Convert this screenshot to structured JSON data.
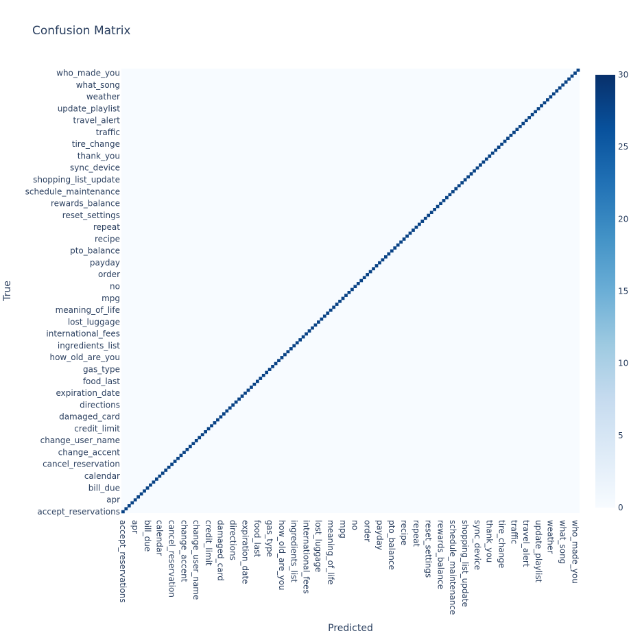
{
  "chart_data": {
    "type": "heatmap",
    "title": "Confusion Matrix",
    "xlabel": "Predicted",
    "ylabel": "True",
    "colorscale": "Blues",
    "zmin": 0,
    "zmax": 30,
    "colorbar_ticks": [
      0,
      5,
      10,
      15,
      20,
      25,
      30
    ],
    "n_classes": 150,
    "diagonal_typical_value": 28,
    "off_diagonal_typical_value": 0,
    "tick_labels": [
      "accept_reservations",
      "apr",
      "bill_due",
      "calendar",
      "cancel_reservation",
      "change_accent",
      "change_user_name",
      "credit_limit",
      "damaged_card",
      "directions",
      "expiration_date",
      "food_last",
      "gas_type",
      "how_old_are_you",
      "ingredients_list",
      "international_fees",
      "lost_luggage",
      "meaning_of_life",
      "mpg",
      "no",
      "order",
      "payday",
      "pto_balance",
      "recipe",
      "repeat",
      "reset_settings",
      "rewards_balance",
      "schedule_maintenance",
      "shopping_list_update",
      "sync_device",
      "thank_you",
      "tire_change",
      "traffic",
      "travel_alert",
      "update_playlist",
      "weather",
      "what_song",
      "who_made_you"
    ],
    "colorscale_stops": [
      "#f7fbff",
      "#deebf7",
      "#c6dbef",
      "#9ecae1",
      "#6baed6",
      "#4292c6",
      "#2171b5",
      "#08519c",
      "#08306b"
    ]
  }
}
